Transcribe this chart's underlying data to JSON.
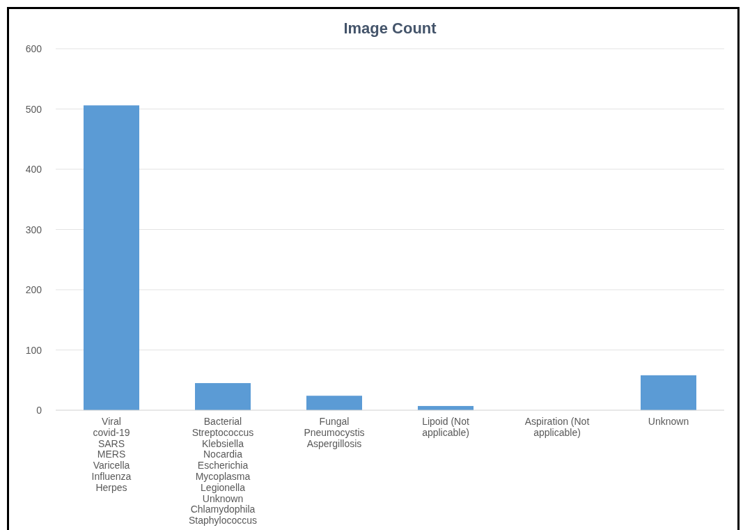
{
  "chart_data": {
    "type": "bar",
    "title": "Image Count",
    "categories": [
      "Viral\ncovid-19\nSARS\nMERS\nVaricella\nInfluenza\nHerpes",
      "Bacterial\nStreptococcus\nKlebsiella\nNocardia\nEscherichia\nMycoplasma\nLegionella\nUnknown\nChlamydophila\nStaphylococcus",
      "Fungal\nPneumocystis\nAspergillosis",
      "Lipoid (Not\napplicable)",
      "Aspiration (Not\napplicable)",
      "Unknown"
    ],
    "values": [
      506,
      45,
      24,
      7,
      0,
      58
    ],
    "color": "#5b9bd5",
    "ylim": [
      0,
      600
    ],
    "yticks": [
      0,
      100,
      200,
      300,
      400,
      500,
      600
    ],
    "grid": "y"
  }
}
